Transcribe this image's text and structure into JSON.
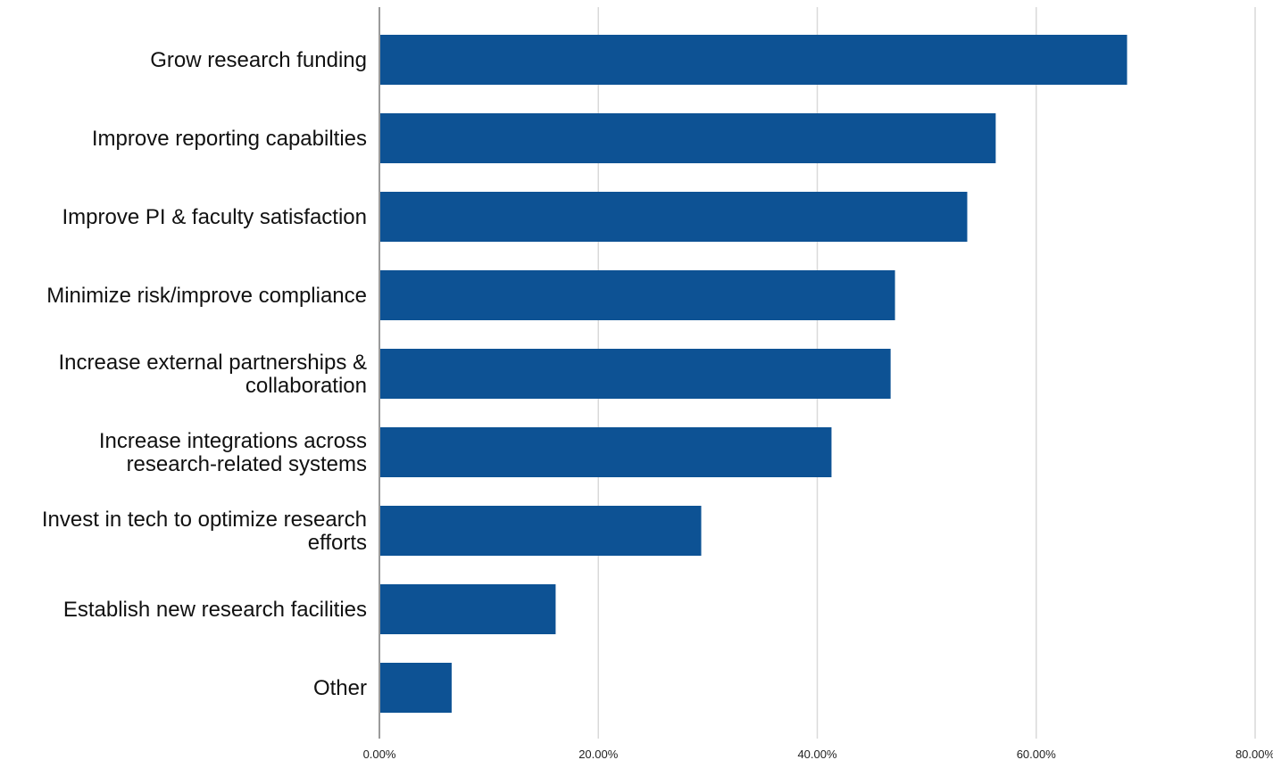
{
  "chart_data": {
    "type": "bar",
    "orientation": "horizontal",
    "title": "",
    "xlabel": "",
    "ylabel": "",
    "categories": [
      "Grow research funding",
      "Improve reporting capabilties",
      "Improve PI & faculty satisfaction",
      "Minimize risk/improve compliance",
      "Increase external partnerships & collaboration",
      "Increase integrations across research-related systems",
      "Invest in tech to optimize research efforts",
      "Establish new research facilities",
      "Other"
    ],
    "category_label_lines": [
      [
        "Grow research funding"
      ],
      [
        "Improve reporting capabilties"
      ],
      [
        "Improve PI & faculty satisfaction"
      ],
      [
        "Minimize risk/improve compliance"
      ],
      [
        "Increase external partnerships &",
        "collaboration"
      ],
      [
        "Increase integrations across",
        "research-related systems"
      ],
      [
        "Invest in tech to optimize research",
        "efforts"
      ],
      [
        "Establish new research facilities"
      ],
      [
        "Other"
      ]
    ],
    "values": [
      68.3,
      56.3,
      53.7,
      47.1,
      46.7,
      41.3,
      29.4,
      16.1,
      6.6
    ],
    "value_unit": "%",
    "xlim": [
      0,
      80
    ],
    "x_ticks": [
      0,
      20,
      40,
      60,
      80
    ],
    "x_tick_labels": [
      "0.00%",
      "20.00%",
      "40.00%",
      "60.00%",
      "80.00%"
    ],
    "grid": true,
    "legend": "none",
    "colors": {
      "bar": "#0d5294",
      "grid": "#d9d9d9",
      "baseline": "#9a9a9a"
    }
  }
}
